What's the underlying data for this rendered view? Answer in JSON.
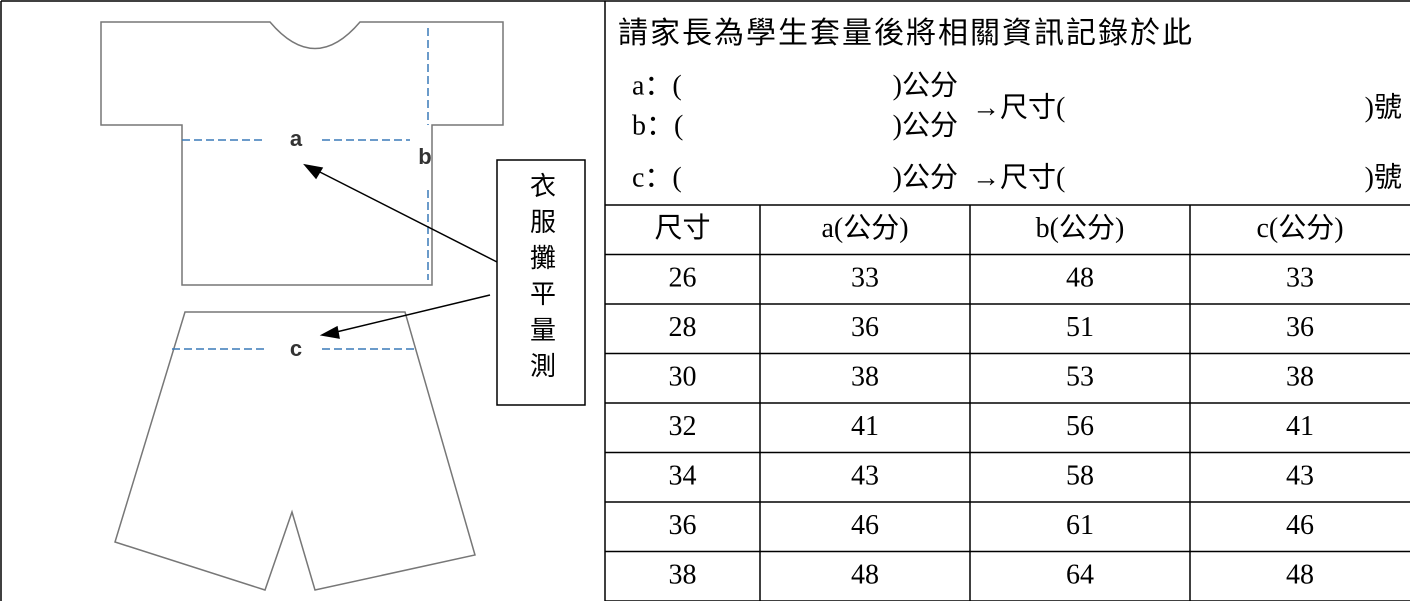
{
  "diagram": {
    "labels": {
      "a": "a",
      "b": "b",
      "c": "c"
    },
    "note": "衣服攤平量測"
  },
  "form": {
    "title": "請家長為學生套量後將相關資訊記錄於此",
    "lines": [
      {
        "open": "a：(",
        "close": ")公分"
      },
      {
        "open": "b：(",
        "close": ")公分"
      },
      {
        "open": "c：(",
        "close": ")公分"
      }
    ],
    "size_lines": [
      {
        "open": "→尺寸(",
        "close": ")號"
      },
      {
        "open": "→尺寸(",
        "close": ")號"
      }
    ]
  },
  "table": {
    "header": [
      "尺寸",
      "a(公分)",
      "b(公分)",
      "c(公分)"
    ],
    "rows": [
      [
        26,
        33,
        48,
        33
      ],
      [
        28,
        36,
        51,
        36
      ],
      [
        30,
        38,
        53,
        38
      ],
      [
        32,
        41,
        56,
        41
      ],
      [
        34,
        43,
        58,
        43
      ],
      [
        36,
        46,
        61,
        46
      ],
      [
        38,
        48,
        64,
        48
      ]
    ]
  }
}
